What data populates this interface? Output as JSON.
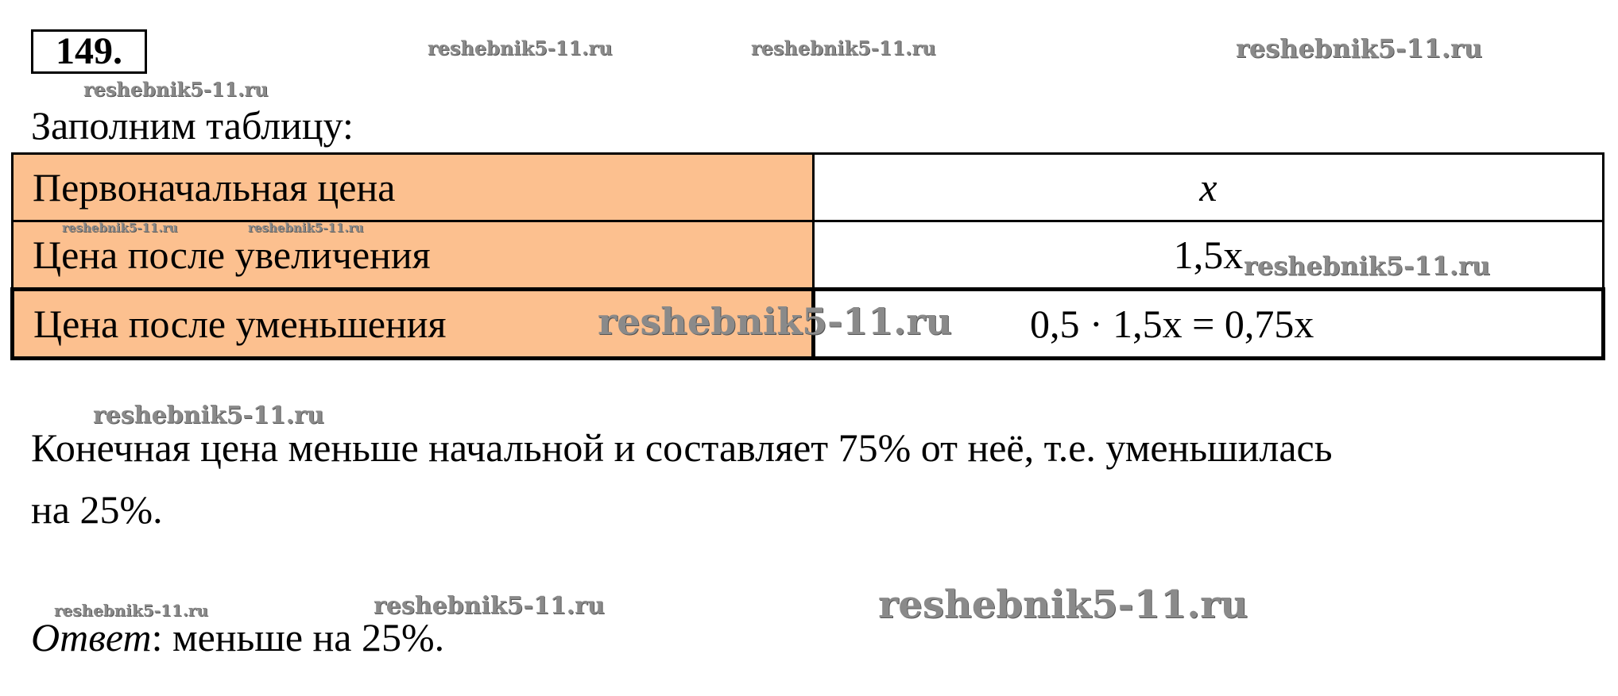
{
  "problem_number": "149.",
  "intro": "Заполним таблицу:",
  "table": {
    "rows": [
      {
        "label": "Первоначальная цена",
        "value": "x"
      },
      {
        "label": "Цена после увеличения",
        "value": "1,5x"
      },
      {
        "label": "Цена после уменьшения",
        "value": "0,5 · 1,5x = 0,75x"
      }
    ]
  },
  "conclusion_line1": "Конечная цена меньше начальной и составляет 75% от неё, т.е. уменьшилась",
  "conclusion_line2": "на 25%.",
  "answer_label": "Ответ",
  "answer_text": ": меньше на 25%.",
  "watermark": "reshebnik5-11.ru",
  "colors": {
    "label_cell": "#fcc08f"
  }
}
